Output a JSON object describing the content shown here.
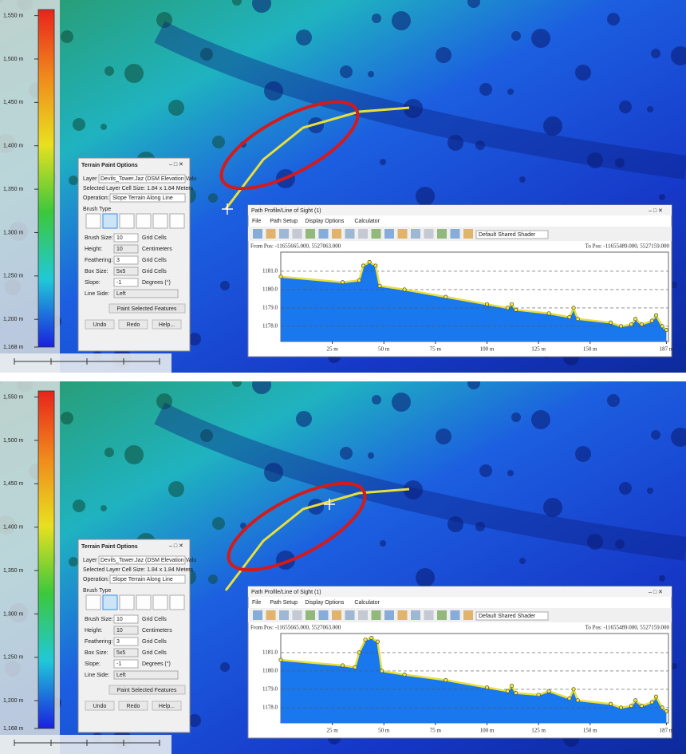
{
  "panels": [
    {
      "legend": {
        "ylim": [
          1168,
          1557
        ],
        "ticks": [
          {
            "value": 1550,
            "label": "1,550 m"
          },
          {
            "value": 1500,
            "label": "1,500 m"
          },
          {
            "value": 1450,
            "label": "1,450 m"
          },
          {
            "value": 1400,
            "label": "1,400 m"
          },
          {
            "value": 1350,
            "label": "1,350 m"
          },
          {
            "value": 1300,
            "label": "1,300 m"
          },
          {
            "value": 1250,
            "label": "1,250 m"
          },
          {
            "value": 1200,
            "label": "1,200 m"
          },
          {
            "value": 1168,
            "label": "1,168 m"
          }
        ]
      },
      "dialog": {
        "title": "Terrain Paint Options",
        "layer_label": "Layer",
        "layer": "Devils_Tower.Jaz (DSM Elevation Valu",
        "cell_size": "Selected Layer Cell Size: 1.84 x 1.84 Meters",
        "operation_label": "Operation:",
        "operation": "Slope Terrain Along Line",
        "brush_type": "Brush Type",
        "rows": [
          {
            "label": "Brush Size:",
            "value": "10",
            "unit": "Grid Cells"
          },
          {
            "label": "Height:",
            "value": "10",
            "unit": "Centimeters"
          },
          {
            "label": "Feathering:",
            "value": "3",
            "unit": "Grid Cells"
          },
          {
            "label": "Box Size:",
            "value": "5x5",
            "unit": "Grid Cells"
          },
          {
            "label": "Slope:",
            "value": "-1",
            "unit": "Degrees (°)"
          },
          {
            "label": "Line Side:",
            "value": "Left"
          }
        ],
        "paint_button": "Paint Selected Features",
        "buttons": [
          "Undo",
          "Redo",
          "Help..."
        ]
      },
      "profile": {
        "title": "Path Profile/Line of Sight (1)",
        "menu": [
          "File",
          "Path Setup",
          "Display Options",
          "Calculator"
        ],
        "shader": "Default Shared Shader",
        "from_pos": "From Pos: -11655665.000, 5527063.000",
        "to_pos": "To Pos: -11655489.000, 5527159.000",
        "xlim": [
          0,
          188
        ],
        "ylim": [
          1177.17,
          1182.04
        ],
        "xticks": [
          {
            "value": 25,
            "label": "25 m"
          },
          {
            "value": 50,
            "label": "50 m"
          },
          {
            "value": 75,
            "label": "75 m"
          },
          {
            "value": 100,
            "label": "100 m"
          },
          {
            "value": 125,
            "label": "125 m"
          },
          {
            "value": 150,
            "label": "150 m"
          },
          {
            "value": 187,
            "label": "187 m"
          }
        ],
        "yticks": [
          {
            "value": 1181,
            "label": "1181.0"
          },
          {
            "value": 1180,
            "label": "1180.0"
          },
          {
            "value": 1179,
            "label": "1179.0"
          },
          {
            "value": 1178,
            "label": "1178.0"
          }
        ],
        "x": [
          0,
          30,
          38,
          40,
          43,
          46,
          48,
          60,
          80,
          100,
          110,
          112,
          114,
          130,
          140,
          142,
          144,
          160,
          165,
          170,
          172,
          175,
          180,
          182,
          185,
          187
        ],
        "values": [
          1180.7,
          1180.4,
          1180.5,
          1181.3,
          1181.5,
          1181.3,
          1180.2,
          1180.0,
          1179.6,
          1179.2,
          1179.0,
          1179.2,
          1178.9,
          1178.7,
          1178.5,
          1179.0,
          1178.4,
          1178.2,
          1178.0,
          1178.1,
          1178.4,
          1178.1,
          1178.3,
          1178.6,
          1178.0,
          1177.8
        ]
      }
    },
    {
      "legend": {
        "ylim": [
          1168,
          1557
        ],
        "ticks": [
          {
            "value": 1550,
            "label": "1,550 m"
          },
          {
            "value": 1500,
            "label": "1,500 m"
          },
          {
            "value": 1450,
            "label": "1,450 m"
          },
          {
            "value": 1400,
            "label": "1,400 m"
          },
          {
            "value": 1350,
            "label": "1,350 m"
          },
          {
            "value": 1300,
            "label": "1,300 m"
          },
          {
            "value": 1250,
            "label": "1,250 m"
          },
          {
            "value": 1200,
            "label": "1,200 m"
          },
          {
            "value": 1168,
            "label": "1,168 m"
          }
        ]
      },
      "dialog": {
        "title": "Terrain Paint Options",
        "layer_label": "Layer",
        "layer": "Devils_Tower.Jaz (DSM Elevation Valu",
        "cell_size": "Selected Layer Cell Size: 1.84 x 1.84 Meters",
        "operation_label": "Operation:",
        "operation": "Slope Terrain Along Line",
        "brush_type": "Brush Type",
        "rows": [
          {
            "label": "Brush Size:",
            "value": "10",
            "unit": "Grid Cells"
          },
          {
            "label": "Height:",
            "value": "10",
            "unit": "Centimeters"
          },
          {
            "label": "Feathering:",
            "value": "3",
            "unit": "Grid Cells"
          },
          {
            "label": "Box Size:",
            "value": "5x5",
            "unit": "Grid Cells"
          },
          {
            "label": "Slope:",
            "value": "-1",
            "unit": "Degrees (°)"
          },
          {
            "label": "Line Side:",
            "value": "Left"
          }
        ],
        "paint_button": "Paint Selected Features",
        "buttons": [
          "Undo",
          "Redo",
          "Help..."
        ]
      },
      "profile": {
        "title": "Path Profile/Line of Sight (1)",
        "menu": [
          "File",
          "Path Setup",
          "Display Options",
          "Calculator"
        ],
        "shader": "Default Shared Shader",
        "from_pos": "From Pos: -11655665.000, 5527063.000",
        "to_pos": "To Pos: -11655489.000, 5527159.000",
        "xlim": [
          0,
          188
        ],
        "ylim": [
          1177.17,
          1182.04
        ],
        "xticks": [
          {
            "value": 25,
            "label": "25 m"
          },
          {
            "value": 50,
            "label": "50 m"
          },
          {
            "value": 75,
            "label": "75 m"
          },
          {
            "value": 100,
            "label": "100 m"
          },
          {
            "value": 125,
            "label": "125 m"
          },
          {
            "value": 150,
            "label": "150 m"
          },
          {
            "value": 187,
            "label": "187 m"
          }
        ],
        "yticks": [
          {
            "value": 1181,
            "label": "1181.0"
          },
          {
            "value": 1180,
            "label": "1180.0"
          },
          {
            "value": 1179,
            "label": "1179.0"
          },
          {
            "value": 1178,
            "label": "1178.0"
          }
        ],
        "x": [
          0,
          30,
          36,
          38,
          41,
          44,
          47,
          49,
          60,
          80,
          100,
          110,
          112,
          114,
          125,
          130,
          140,
          142,
          144,
          160,
          165,
          170,
          172,
          175,
          180,
          182,
          185,
          187
        ],
        "values": [
          1180.6,
          1180.3,
          1180.2,
          1181.0,
          1181.7,
          1181.8,
          1181.6,
          1180.0,
          1179.8,
          1179.5,
          1179.1,
          1178.9,
          1179.2,
          1178.8,
          1178.7,
          1178.9,
          1178.5,
          1179.0,
          1178.4,
          1178.2,
          1178.0,
          1178.1,
          1178.4,
          1178.1,
          1178.3,
          1178.6,
          1178.0,
          1177.8
        ]
      }
    }
  ]
}
